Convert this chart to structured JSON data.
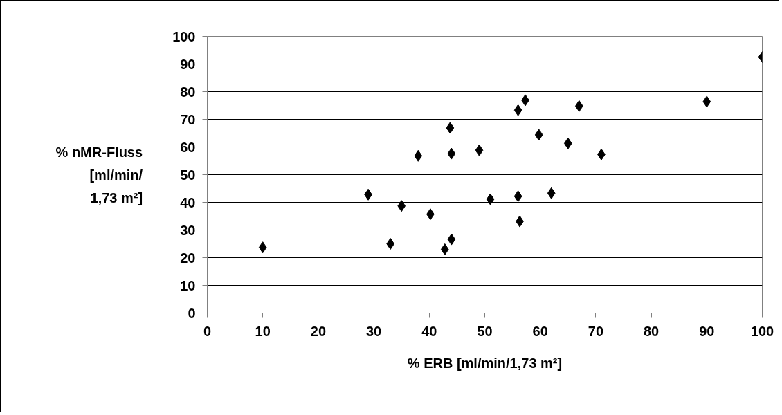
{
  "chart_data": {
    "type": "scatter",
    "xlabel": "% ERB [ml/min/1,73 m²]",
    "ylabel": "% nMR-Fluss\n[ml/min/\n1,73 m²]",
    "x": [
      10,
      29,
      33,
      35,
      38,
      40.2,
      42.8,
      43.75,
      44,
      44,
      49,
      51,
      56,
      57.3,
      56,
      56.3,
      59.75,
      62,
      65,
      67,
      71,
      90,
      100
    ],
    "series": [
      {
        "color": "#000000",
        "values": [
          23.7,
          42.8,
          25,
          38.7,
          56.8,
          35.7,
          23,
          66.9,
          57.6,
          26.6,
          58.8,
          41.1,
          73.3,
          76.9,
          42.2,
          33.1,
          64.4,
          43.3,
          61.3,
          74.8,
          57.3,
          76.4,
          92.5
        ]
      }
    ],
    "xlim": [
      0,
      100
    ],
    "ylim": [
      0,
      100
    ],
    "xticks": [
      0,
      10,
      20,
      30,
      40,
      50,
      60,
      70,
      80,
      90,
      100
    ],
    "yticks": [
      0,
      10,
      20,
      30,
      40,
      50,
      60,
      70,
      80,
      90,
      100
    ],
    "grid": "y",
    "marker": "diamond"
  }
}
